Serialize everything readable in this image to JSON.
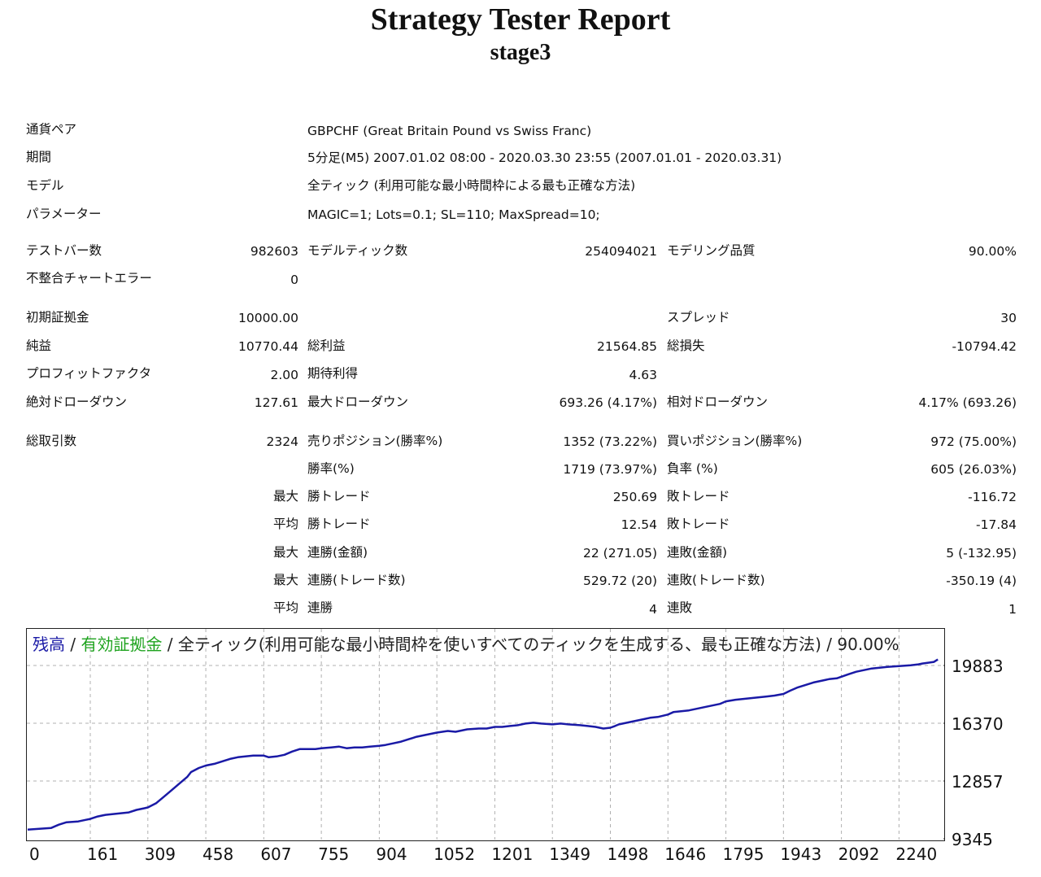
{
  "header": {
    "title": "Strategy Tester Report",
    "subtitle": "stage3"
  },
  "info": [
    {
      "label": "通貨ペア",
      "value": "GBPCHF (Great Britain Pound vs Swiss Franc)"
    },
    {
      "label": "期間",
      "value": "5分足(M5) 2007.01.02 08:00 - 2020.03.30 23:55 (2007.01.01 - 2020.03.31)"
    },
    {
      "label": "モデル",
      "value": "全ティック (利用可能な最小時間枠による最も正確な方法)"
    },
    {
      "label": "パラメーター",
      "value": "MAGIC=1; Lots=0.1; SL=110; MaxSpread=10;"
    }
  ],
  "stats": {
    "bars_label": "テストバー数",
    "bars_value": "982603",
    "ticks_label": "モデルティック数",
    "ticks_value": "254094021",
    "quality_label": "モデリング品質",
    "quality_value": "90.00%",
    "mismatch_label": "不整合チャートエラー",
    "mismatch_value": "0",
    "deposit_label": "初期証拠金",
    "deposit_value": "10000.00",
    "spread_label": "スプレッド",
    "spread_value": "30",
    "net_label": "純益",
    "net_value": "10770.44",
    "gross_profit_label": "総利益",
    "gross_profit_value": "21564.85",
    "gross_loss_label": "総損失",
    "gross_loss_value": "-10794.42",
    "pf_label": "プロフィットファクタ",
    "pf_value": "2.00",
    "expected_label": "期待利得",
    "expected_value": "4.63",
    "abs_dd_label": "絶対ドローダウン",
    "abs_dd_value": "127.61",
    "max_dd_label": "最大ドローダウン",
    "max_dd_value": "693.26 (4.17%)",
    "rel_dd_label": "相対ドローダウン",
    "rel_dd_value": "4.17% (693.26)",
    "trades_label": "総取引数",
    "trades_value": "2324",
    "short_label": "売りポジション(勝率%)",
    "short_value": "1352 (73.22%)",
    "long_label": "買いポジション(勝率%)",
    "long_value": "972 (75.00%)",
    "win_label": "勝率(%)",
    "win_value": "1719 (73.97%)",
    "loss_label": "負率 (%)",
    "loss_value": "605 (26.03%)",
    "largest_prefix": "最大",
    "largest_win_label": "勝トレード",
    "largest_win_value": "250.69",
    "largest_loss_label": "敗トレード",
    "largest_loss_value": "-116.72",
    "average_prefix": "平均",
    "avg_win_label": "勝トレード",
    "avg_win_value": "12.54",
    "avg_loss_label": "敗トレード",
    "avg_loss_value": "-17.84",
    "max_consec_prefix": "最大",
    "max_consec_win_label": "連勝(金額)",
    "max_consec_win_value": "22 (271.05)",
    "max_consec_loss_label": "連敗(金額)",
    "max_consec_loss_value": "5 (-132.95)",
    "max_consec2_prefix": "最大",
    "max_consec_profit_label": "連勝(トレード数)",
    "max_consec_profit_value": "529.72 (20)",
    "max_consec_lossamt_label": "連敗(トレード数)",
    "max_consec_lossamt_value": "-350.19 (4)",
    "avg_consec_prefix": "平均",
    "avg_consec_win_label": "連勝",
    "avg_consec_win_value": "4",
    "avg_consec_loss_label": "連敗",
    "avg_consec_loss_value": "1"
  },
  "chart_data": {
    "type": "line",
    "caption": {
      "balance": "残高",
      "sep1": " / ",
      "equity": "有効証拠金",
      "rest": " / 全ティック(利用可能な最小時間枠を使いすべてのティックを生成する、最も正確な方法) / 90.00%"
    },
    "y_ticks": [
      "19883",
      "16370",
      "12857",
      "9345"
    ],
    "x_ticks": [
      "0",
      "161",
      "309",
      "458",
      "607",
      "755",
      "904",
      "1052",
      "1201",
      "1349",
      "1498",
      "1646",
      "1795",
      "1943",
      "2092",
      "2240"
    ],
    "ylim": [
      9345,
      20700
    ],
    "xlim": [
      0,
      2350
    ],
    "grid": true,
    "colors": {
      "balance": "#1a1aa6",
      "equity": "#1fa31f",
      "grid": "#b0b0b0"
    },
    "series": [
      {
        "name": "残高",
        "x": [
          0,
          30,
          60,
          80,
          100,
          130,
          150,
          161,
          180,
          200,
          220,
          240,
          260,
          280,
          300,
          309,
          330,
          350,
          370,
          390,
          410,
          420,
          440,
          458,
          480,
          500,
          520,
          540,
          560,
          580,
          600,
          607,
          620,
          640,
          660,
          680,
          700,
          720,
          740,
          755,
          780,
          800,
          820,
          840,
          860,
          880,
          904,
          920,
          940,
          960,
          980,
          1000,
          1020,
          1052,
          1080,
          1100,
          1130,
          1160,
          1180,
          1201,
          1220,
          1240,
          1260,
          1280,
          1300,
          1320,
          1349,
          1370,
          1390,
          1420,
          1440,
          1460,
          1480,
          1498,
          1510,
          1520,
          1540,
          1560,
          1580,
          1600,
          1620,
          1646,
          1660,
          1680,
          1700,
          1720,
          1740,
          1760,
          1780,
          1795,
          1820,
          1840,
          1860,
          1880,
          1900,
          1920,
          1943,
          1960,
          1980,
          2000,
          2020,
          2040,
          2060,
          2080,
          2092,
          2110,
          2130,
          2150,
          2170,
          2190,
          2210,
          2240,
          2270,
          2290,
          2300,
          2315,
          2330,
          2340
        ],
        "y": [
          9900,
          9950,
          10000,
          10200,
          10350,
          10400,
          10500,
          10550,
          10700,
          10800,
          10850,
          10900,
          10950,
          11100,
          11200,
          11250,
          11500,
          11900,
          12300,
          12700,
          13100,
          13400,
          13650,
          13800,
          13900,
          14050,
          14200,
          14300,
          14350,
          14400,
          14400,
          14400,
          14300,
          14350,
          14450,
          14650,
          14800,
          14800,
          14800,
          14850,
          14900,
          14950,
          14850,
          14900,
          14900,
          14950,
          15000,
          15050,
          15150,
          15250,
          15400,
          15550,
          15650,
          15800,
          15900,
          15850,
          16000,
          16050,
          16050,
          16150,
          16150,
          16200,
          16250,
          16350,
          16400,
          16350,
          16300,
          16350,
          16300,
          16250,
          16200,
          16150,
          16050,
          16100,
          16200,
          16300,
          16400,
          16500,
          16600,
          16700,
          16750,
          16900,
          17050,
          17100,
          17150,
          17250,
          17350,
          17450,
          17550,
          17700,
          17800,
          17850,
          17900,
          17950,
          18000,
          18050,
          18150,
          18350,
          18550,
          18700,
          18850,
          18950,
          19050,
          19100,
          19200,
          19350,
          19500,
          19600,
          19700,
          19750,
          19800,
          19850,
          19900,
          19950,
          20000,
          20050,
          20100,
          20250
        ]
      }
    ]
  }
}
